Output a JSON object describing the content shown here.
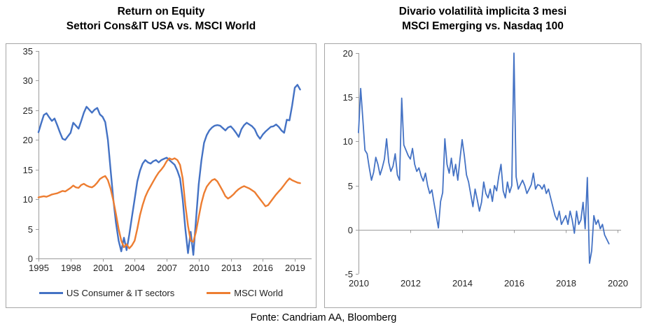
{
  "footer": "Fonte: Candriam AA, Bloomberg",
  "colors": {
    "series_blue": "#4472C4",
    "series_orange": "#ED7D31",
    "axis": "#9c9c9c",
    "panel_border": "#a6a6a6",
    "tick_label": "#262626",
    "title": "#000000"
  },
  "chart_data": [
    {
      "type": "line",
      "title_lines": [
        "Return on Equity",
        "Settori Cons&IT USA vs. MSCI World"
      ],
      "xlabel": "",
      "ylabel": "",
      "xlim": [
        1995,
        2019
      ],
      "ylim": [
        0,
        35
      ],
      "xticks": [
        1995,
        1998,
        2001,
        2004,
        2007,
        2010,
        2013,
        2016,
        2019
      ],
      "yticks": [
        0,
        5,
        10,
        15,
        20,
        25,
        30,
        35
      ],
      "x_axis_at": 0,
      "grid": false,
      "legend_position": "bottom",
      "series": [
        {
          "name": "US Consumer & IT sectors",
          "color": "#4472C4",
          "x_start": 1995.0,
          "x_step": 0.25,
          "values": [
            21.3,
            22.8,
            24.2,
            24.5,
            23.8,
            23.2,
            23.6,
            22.5,
            21.3,
            20.2,
            20.0,
            20.6,
            21.2,
            22.9,
            22.4,
            21.9,
            23.2,
            24.6,
            25.6,
            25.1,
            24.6,
            25.1,
            25.4,
            24.3,
            23.9,
            23.0,
            20.0,
            15.0,
            10.0,
            6.0,
            3.0,
            1.2,
            3.5,
            1.4,
            4.0,
            7.0,
            10.0,
            13.0,
            14.8,
            16.0,
            16.6,
            16.2,
            16.0,
            16.4,
            16.6,
            16.2,
            16.6,
            16.8,
            17.0,
            16.6,
            16.2,
            15.8,
            14.8,
            13.5,
            10.0,
            5.0,
            0.9,
            4.5,
            0.6,
            6.5,
            12.5,
            16.5,
            19.5,
            20.8,
            21.6,
            22.1,
            22.4,
            22.5,
            22.4,
            22.0,
            21.6,
            22.1,
            22.3,
            21.8,
            21.2,
            20.5,
            21.8,
            22.5,
            22.9,
            22.6,
            22.3,
            21.8,
            20.8,
            20.2,
            20.9,
            21.4,
            21.8,
            22.2,
            22.3,
            22.6,
            22.2,
            21.6,
            21.2,
            23.4,
            23.3,
            25.8,
            28.8,
            29.3,
            28.5
          ]
        },
        {
          "name": "MSCI World",
          "color": "#ED7D31",
          "x_start": 1995.0,
          "x_step": 0.25,
          "values": [
            10.3,
            10.4,
            10.5,
            10.4,
            10.6,
            10.8,
            10.9,
            11.0,
            11.2,
            11.4,
            11.3,
            11.6,
            11.9,
            12.3,
            12.0,
            11.9,
            12.4,
            12.6,
            12.3,
            12.1,
            12.0,
            12.3,
            12.8,
            13.4,
            13.7,
            13.9,
            13.2,
            11.8,
            9.8,
            7.5,
            5.0,
            3.0,
            1.9,
            2.4,
            1.7,
            2.2,
            3.0,
            5.0,
            7.3,
            9.0,
            10.4,
            11.4,
            12.2,
            13.0,
            13.8,
            14.5,
            15.0,
            15.6,
            16.4,
            16.9,
            16.7,
            16.9,
            16.6,
            15.8,
            13.5,
            9.0,
            5.5,
            3.0,
            2.8,
            4.5,
            7.0,
            9.3,
            11.0,
            12.1,
            12.7,
            13.2,
            13.4,
            13.0,
            12.2,
            11.4,
            10.5,
            10.1,
            10.4,
            10.8,
            11.3,
            11.7,
            12.0,
            12.2,
            12.0,
            11.8,
            11.5,
            11.2,
            10.6,
            10.0,
            9.4,
            8.8,
            9.0,
            9.6,
            10.2,
            10.8,
            11.3,
            11.8,
            12.4,
            13.0,
            13.5,
            13.2,
            13.0,
            12.8,
            12.7
          ]
        }
      ]
    },
    {
      "type": "line",
      "title_lines": [
        "Divario volatilità implicita 3 mesi",
        "MSCI Emerging vs. Nasdaq 100"
      ],
      "xlabel": "",
      "ylabel": "",
      "xlim": [
        2010,
        2020
      ],
      "ylim": [
        -5,
        20
      ],
      "xticks": [
        2010,
        2012,
        2014,
        2016,
        2018,
        2020
      ],
      "yticks": [
        -5,
        0,
        5,
        10,
        15,
        20
      ],
      "x_axis_at": 0,
      "grid": false,
      "legend_position": "none",
      "series": [
        {
          "name": "Divario volatilità implicita 3 mesi MSCI Emerging vs. Nasdaq 100",
          "color": "#4472C4",
          "x_start": 2010.0,
          "x_step": 0.0833333,
          "values": [
            11.0,
            16.0,
            12.5,
            9.0,
            8.6,
            7.0,
            5.6,
            6.5,
            8.2,
            7.4,
            6.2,
            7.0,
            8.0,
            10.3,
            7.6,
            6.6,
            7.2,
            8.6,
            6.2,
            5.6,
            14.9,
            9.6,
            9.0,
            8.4,
            8.0,
            9.2,
            7.4,
            6.6,
            7.0,
            6.1,
            5.5,
            6.4,
            5.0,
            4.1,
            4.5,
            3.0,
            1.6,
            0.2,
            3.2,
            4.2,
            10.3,
            7.4,
            6.4,
            8.1,
            6.1,
            7.4,
            5.6,
            8.0,
            10.2,
            8.4,
            6.2,
            5.4,
            4.0,
            2.6,
            4.6,
            3.4,
            2.1,
            3.1,
            5.4,
            4.1,
            3.6,
            4.6,
            3.2,
            5.0,
            4.4,
            6.1,
            7.4,
            4.4,
            3.6,
            5.4,
            4.2,
            5.0,
            20.0,
            6.0,
            4.6,
            5.1,
            5.6,
            5.0,
            4.1,
            4.6,
            5.1,
            6.4,
            4.6,
            5.1,
            5.0,
            4.6,
            5.1,
            4.1,
            4.6,
            3.6,
            2.6,
            1.6,
            1.1,
            2.1,
            0.6,
            1.1,
            1.6,
            0.6,
            2.1,
            1.1,
            -0.4,
            2.1,
            0.6,
            1.1,
            3.1,
            0.1,
            5.9,
            -3.8,
            -2.4,
            1.6,
            0.6,
            1.1,
            0.1,
            0.6,
            -0.6,
            -1.1,
            -1.6
          ]
        }
      ]
    }
  ]
}
